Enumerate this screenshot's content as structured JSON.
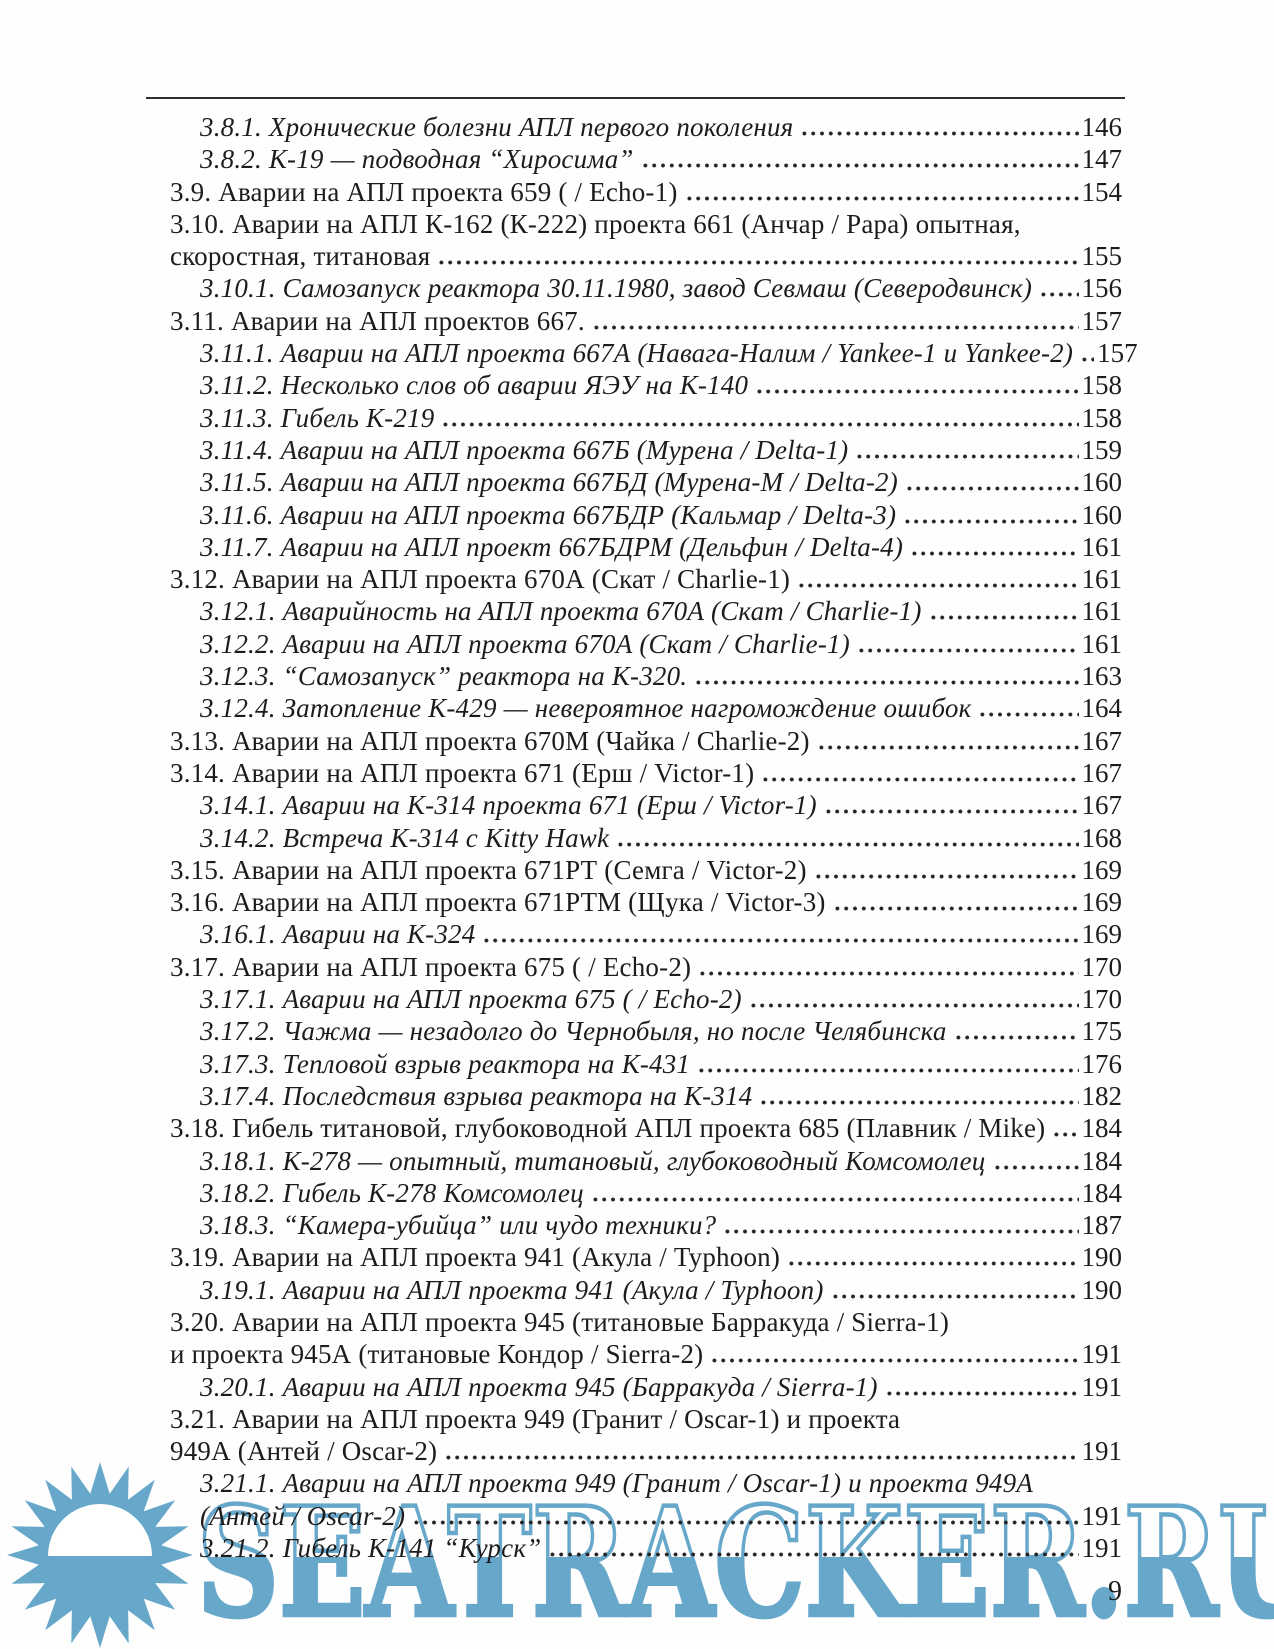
{
  "folio": "9",
  "watermark": {
    "text": "SEATRACKER.RU",
    "color": "#66a7ca",
    "icon": "sun-logo"
  },
  "toc": {
    "entries": [
      {
        "level": 1,
        "italic": true,
        "lines": [
          "3.8.1. Хронические болезни АПЛ первого поколения"
        ],
        "page": "146"
      },
      {
        "level": 1,
        "italic": true,
        "lines": [
          "3.8.2. К-19 — подводная “Хиросима”"
        ],
        "page": "147"
      },
      {
        "level": 0,
        "italic": false,
        "lines": [
          "3.9. Аварии на АПЛ проекта 659 ( / Echo-1)"
        ],
        "page": "154"
      },
      {
        "level": 0,
        "italic": false,
        "lines": [
          "3.10. Аварии на АПЛ К-162 (К-222) проекта 661 (Анчар / Papa) опытная,",
          "скоростная, титановая"
        ],
        "page": "155"
      },
      {
        "level": 1,
        "italic": true,
        "lines": [
          "3.10.1. Самозапуск реактора 30.11.1980, завод Севмаш (Северодвинск)"
        ],
        "page": "156"
      },
      {
        "level": 0,
        "italic": false,
        "lines": [
          "3.11. Аварии на АПЛ проектов 667."
        ],
        "page": "157"
      },
      {
        "level": 1,
        "italic": true,
        "lines": [
          "3.11.1. Аварии на АПЛ проекта 667А (Навага-Налим / Yankee-1 и Yankee-2)"
        ],
        "page": "157"
      },
      {
        "level": 1,
        "italic": true,
        "lines": [
          "3.11.2. Несколько слов об аварии ЯЭУ на К-140"
        ],
        "page": "158"
      },
      {
        "level": 1,
        "italic": true,
        "lines": [
          "3.11.3. Гибель К-219"
        ],
        "page": "158"
      },
      {
        "level": 1,
        "italic": true,
        "lines": [
          "3.11.4. Аварии на АПЛ проекта 667Б (Мурена / Delta-1)"
        ],
        "page": "159"
      },
      {
        "level": 1,
        "italic": true,
        "lines": [
          "3.11.5. Аварии на АПЛ проекта 667БД (Мурена-М / Delta-2)"
        ],
        "page": "160"
      },
      {
        "level": 1,
        "italic": true,
        "lines": [
          "3.11.6. Аварии на АПЛ проекта 667БДР (Кальмар / Delta-3)"
        ],
        "page": "160"
      },
      {
        "level": 1,
        "italic": true,
        "lines": [
          "3.11.7. Аварии на АПЛ проект 667БДРМ (Дельфин / Delta-4)"
        ],
        "page": "161"
      },
      {
        "level": 0,
        "italic": false,
        "lines": [
          "3.12. Аварии на АПЛ проекта 670А (Скат / Charlie-1)"
        ],
        "page": "161"
      },
      {
        "level": 1,
        "italic": true,
        "lines": [
          "3.12.1. Аварийность на АПЛ проекта 670А (Скат / Charlie-1)"
        ],
        "page": "161"
      },
      {
        "level": 1,
        "italic": true,
        "lines": [
          "3.12.2. Аварии на АПЛ проекта 670А (Скат / Charlie-1)"
        ],
        "page": "161"
      },
      {
        "level": 1,
        "italic": true,
        "lines": [
          "3.12.3. “Самозапуск” реактора на К-320."
        ],
        "page": "163"
      },
      {
        "level": 1,
        "italic": true,
        "lines": [
          "3.12.4. Затопление К-429 — невероятное нагромождение ошибок"
        ],
        "page": "164"
      },
      {
        "level": 0,
        "italic": false,
        "lines": [
          "3.13. Аварии на АПЛ проекта 670М (Чайка / Charlie-2)"
        ],
        "page": "167"
      },
      {
        "level": 0,
        "italic": false,
        "lines": [
          "3.14. Аварии на АПЛ проекта 671 (Ерш / Victor-1)"
        ],
        "page": "167"
      },
      {
        "level": 1,
        "italic": true,
        "lines": [
          "3.14.1. Аварии на К-314 проекта 671 (Ерш / Victor-1)"
        ],
        "page": "167"
      },
      {
        "level": 1,
        "italic": true,
        "lines": [
          "3.14.2. Встреча К-314 с Kitty Hawk"
        ],
        "page": "168"
      },
      {
        "level": 0,
        "italic": false,
        "lines": [
          "3.15. Аварии на АПЛ проекта 671РТ (Семга / Victor-2)"
        ],
        "page": "169"
      },
      {
        "level": 0,
        "italic": false,
        "lines": [
          "3.16. Аварии на АПЛ проекта 671РТМ (Щука / Victor-3)"
        ],
        "page": "169"
      },
      {
        "level": 1,
        "italic": true,
        "lines": [
          "3.16.1. Аварии на К-324"
        ],
        "page": "169"
      },
      {
        "level": 0,
        "italic": false,
        "lines": [
          "3.17. Аварии на АПЛ проекта 675 ( / Echo-2)"
        ],
        "page": "170"
      },
      {
        "level": 1,
        "italic": true,
        "lines": [
          "3.17.1. Аварии на АПЛ проекта 675 ( / Echo-2)"
        ],
        "page": "170"
      },
      {
        "level": 1,
        "italic": true,
        "lines": [
          "3.17.2. Чажма — незадолго до Чернобыля, но после Челябинска"
        ],
        "page": "175"
      },
      {
        "level": 1,
        "italic": true,
        "lines": [
          "3.17.3. Тепловой взрыв реактора на К-431"
        ],
        "page": "176"
      },
      {
        "level": 1,
        "italic": true,
        "lines": [
          "3.17.4. Последствия взрыва реактора на К-314"
        ],
        "page": "182"
      },
      {
        "level": 0,
        "italic": false,
        "lines": [
          "3.18. Гибель титановой, глубоководной АПЛ проекта 685 (Плавник / Mike)"
        ],
        "page": "184"
      },
      {
        "level": 1,
        "italic": true,
        "lines": [
          "3.18.1. К-278 — опытный, титановый, глубоководный Комсомолец"
        ],
        "page": "184"
      },
      {
        "level": 1,
        "italic": true,
        "lines": [
          "3.18.2. Гибель К-278 Комсомолец"
        ],
        "page": "184"
      },
      {
        "level": 1,
        "italic": true,
        "lines": [
          "3.18.3. “Камера-убийца” или чудо техники?"
        ],
        "page": "187"
      },
      {
        "level": 0,
        "italic": false,
        "lines": [
          "3.19. Аварии на АПЛ проекта 941 (Акула / Typhoon)"
        ],
        "page": "190"
      },
      {
        "level": 1,
        "italic": true,
        "lines": [
          "3.19.1. Аварии на АПЛ проекта 941 (Акула / Typhoon)"
        ],
        "page": "190"
      },
      {
        "level": 0,
        "italic": false,
        "lines": [
          "3.20. Аварии на АПЛ проекта 945 (титановые Барракуда / Sierra-1)",
          "и проекта 945А (титановые Кондор / Sierra-2)"
        ],
        "page": "191"
      },
      {
        "level": 1,
        "italic": true,
        "lines": [
          "3.20.1. Аварии на АПЛ проекта 945 (Барракуда / Sierra-1)"
        ],
        "page": "191"
      },
      {
        "level": 0,
        "italic": false,
        "lines": [
          "3.21. Аварии на АПЛ проекта 949 (Гранит / Oscar-1) и проекта",
          "949А (Антей / Oscar-2)"
        ],
        "page": "191"
      },
      {
        "level": 1,
        "italic": true,
        "lines": [
          "3.21.1. Аварии на АПЛ проекта 949 (Гранит / Oscar-1) и проекта 949А",
          "(Антей / Oscar-2)"
        ],
        "page": "191"
      },
      {
        "level": 1,
        "italic": true,
        "lines": [
          "3.21.2. Гибель К-141 “Курск”"
        ],
        "page": "191"
      }
    ]
  }
}
